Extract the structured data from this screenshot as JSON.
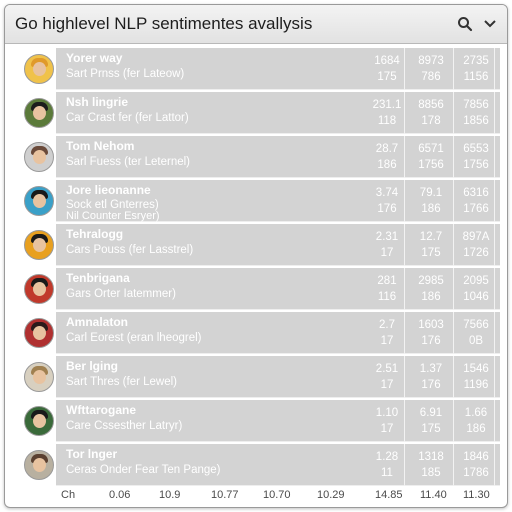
{
  "window": {
    "title": "Go highlevel NLP sentimentes avallysis"
  },
  "toolbar": {
    "icons": [
      "search-icon",
      "chevron-down-icon"
    ]
  },
  "rows": [
    {
      "name": "Yorer way",
      "sub": "Sart Prnss (fer Lateow)",
      "sub_extra": "",
      "v1": "1684",
      "v2": "8973",
      "v3": "2735",
      "w1": "175",
      "w2": "786",
      "w3": "1156",
      "avatar_bg": "#f0c24a",
      "hair": "#e09a2a"
    },
    {
      "name": "Nsh lingrie",
      "sub": "Car Crast fer (fer Lattor)",
      "sub_extra": "",
      "v1": "231.1",
      "v2": "8856",
      "v3": "7856",
      "w1": "118",
      "w2": "178",
      "w3": "1856",
      "avatar_bg": "#5b7a3a",
      "hair": "#1c1c1c"
    },
    {
      "name": "Tom Nehom",
      "sub": "Sarl Fuess (ter Leternel)",
      "sub_extra": "",
      "v1": "28.7",
      "v2": "6571",
      "v3": "6553",
      "w1": "186",
      "w2": "1756",
      "w3": "1756",
      "avatar_bg": "#cfcfcf",
      "hair": "#6a4a3a"
    },
    {
      "name": "Jore lieonanne",
      "sub": "Sock etl Gnterres)",
      "sub_extra": "Nil Counter Esryer)",
      "v1": "3.74",
      "v2": "79.1",
      "v3": "6316",
      "w1": "176",
      "w2": "186",
      "w3": "1766",
      "avatar_bg": "#3aa0c8",
      "hair": "#1a1a1a"
    },
    {
      "name": "Tehralogg",
      "sub": "Cars Pouss (fer Lasstrel)",
      "sub_extra": "",
      "v1": "2.31",
      "v2": "12.7",
      "v3": "897A",
      "w1": "17",
      "w2": "175",
      "w3": "1726",
      "avatar_bg": "#e8a020",
      "hair": "#1a1a1a"
    },
    {
      "name": "Tenbrigana",
      "sub": "Gars Orter Iatemmer)",
      "sub_extra": "",
      "v1": "281",
      "v2": "2985",
      "v3": "2095",
      "w1": "116",
      "w2": "186",
      "w3": "1046",
      "avatar_bg": "#c0392b",
      "hair": "#1a1a1a"
    },
    {
      "name": "Amnalaton",
      "sub": "Carl Eorest (eran lheogrel)",
      "sub_extra": "",
      "v1": "2.7",
      "v2": "1603",
      "v3": "7566",
      "w1": "17",
      "w2": "176",
      "w3": "0B",
      "avatar_bg": "#b03030",
      "hair": "#2a1a1a"
    },
    {
      "name": "Ber lging",
      "sub": "Sart Thres (fer Lewel)",
      "sub_extra": "",
      "v1": "2.51",
      "v2": "1.37",
      "v3": "1546",
      "w1": "17",
      "w2": "176",
      "w3": "1196",
      "avatar_bg": "#d8d0c0",
      "hair": "#a08050"
    },
    {
      "name": "Wfttarogane",
      "sub": "Care Cssesther Latryr)",
      "sub_extra": "",
      "v1": "1.10",
      "v2": "6.91",
      "v3": "1.66",
      "w1": "17",
      "w2": "175",
      "w3": "186",
      "avatar_bg": "#3a6a3a",
      "hair": "#1a1a1a"
    },
    {
      "name": "Tor lnger",
      "sub": "Ceras Onder Fear Ten Pange)",
      "sub_extra": "",
      "v1": "1.28",
      "v2": "1318",
      "v3": "1846",
      "w1": "11",
      "w2": "185",
      "w3": "1786",
      "avatar_bg": "#b8b0a0",
      "hair": "#5a4030"
    }
  ],
  "footer": {
    "labels": [
      "Ch",
      "0.06",
      "10.9",
      "10.77",
      "10.70",
      "10.29",
      "14.85",
      "11.40",
      "11.30"
    ]
  }
}
